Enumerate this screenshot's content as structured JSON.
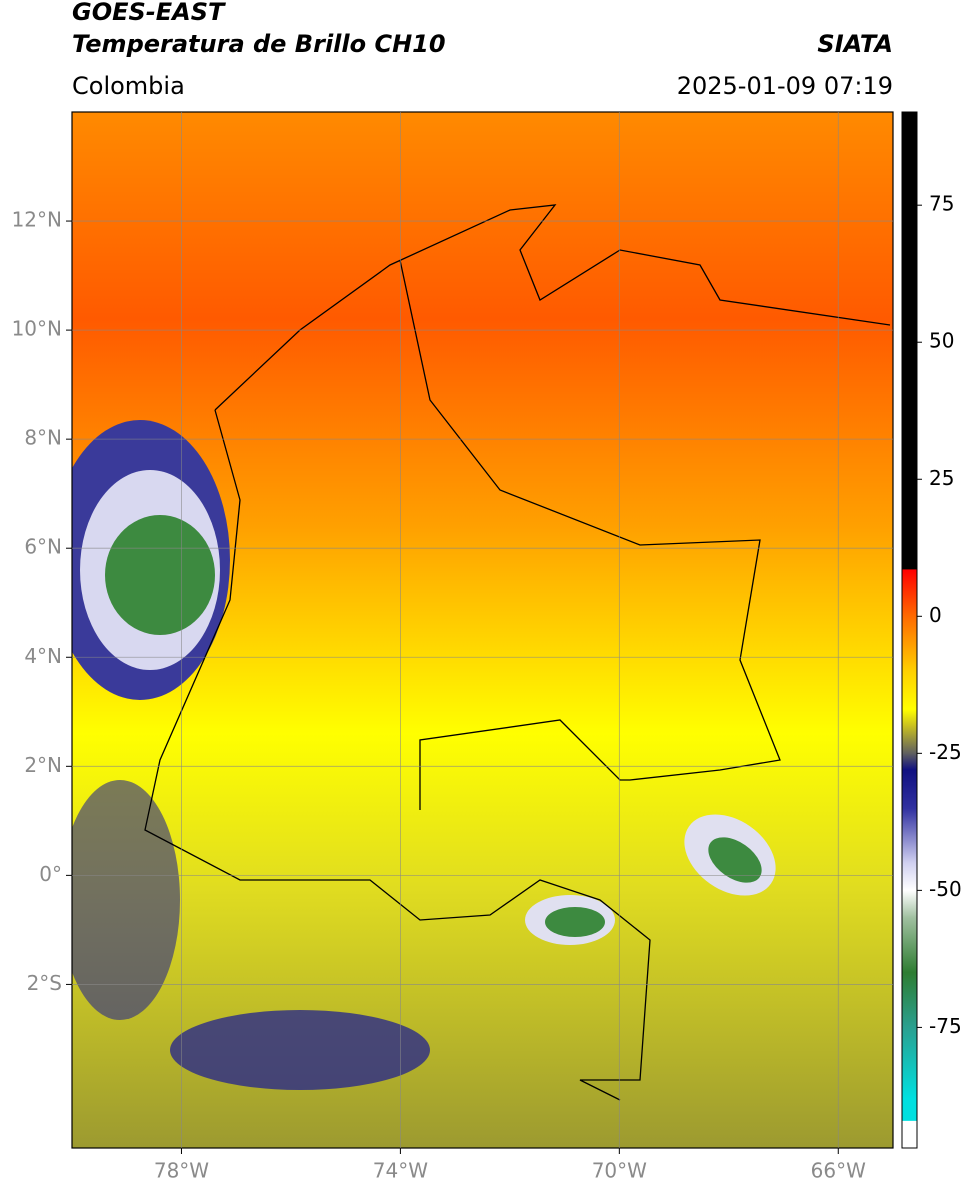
{
  "header": {
    "title": "GOES-EAST",
    "subtitle": "Temperatura de Brillo CH10",
    "source": "SIATA",
    "region": "Colombia",
    "datetime": "2025-01-09 07:19"
  },
  "map": {
    "xlim": [
      -80,
      -65
    ],
    "ylim": [
      -5,
      14
    ],
    "xticks": [
      {
        "value": -78,
        "label": "78°W"
      },
      {
        "value": -74,
        "label": "74°W"
      },
      {
        "value": -70,
        "label": "70°W"
      },
      {
        "value": -66,
        "label": "66°W"
      }
    ],
    "yticks": [
      {
        "value": 12,
        "label": "12°N"
      },
      {
        "value": 10,
        "label": "10°N"
      },
      {
        "value": 8,
        "label": "8°N"
      },
      {
        "value": 6,
        "label": "6°N"
      },
      {
        "value": 4,
        "label": "4°N"
      },
      {
        "value": 2,
        "label": "2°N"
      },
      {
        "value": 0,
        "label": "0°"
      },
      {
        "value": -2,
        "label": "2°S"
      }
    ],
    "grid": true
  },
  "colorbar": {
    "lim": [
      -97,
      92
    ],
    "ticks": [
      75,
      50,
      25,
      0,
      -25,
      -50,
      -75
    ],
    "colormap": [
      {
        "value": 92,
        "color": "#000000"
      },
      {
        "value": 8.6,
        "color": "#000000"
      },
      {
        "value": 8.5,
        "color": "#ff0000"
      },
      {
        "value": 0,
        "color": "#ff6a00"
      },
      {
        "value": -10,
        "color": "#ffd000"
      },
      {
        "value": -17,
        "color": "#ffff00"
      },
      {
        "value": -20,
        "color": "#c8c020"
      },
      {
        "value": -25,
        "color": "#606060"
      },
      {
        "value": -28,
        "color": "#101080"
      },
      {
        "value": -35,
        "color": "#3030a0"
      },
      {
        "value": -45,
        "color": "#d0d0f0"
      },
      {
        "value": -50,
        "color": "#ffffff"
      },
      {
        "value": -55,
        "color": "#a0c0a0"
      },
      {
        "value": -65,
        "color": "#2e7d32"
      },
      {
        "value": -75,
        "color": "#2aa090"
      },
      {
        "value": -88,
        "color": "#00e0e0"
      },
      {
        "value": -92,
        "color": "#00e0e0"
      },
      {
        "value": -92.1,
        "color": "#ffffff"
      },
      {
        "value": -97,
        "color": "#ffffff"
      }
    ]
  }
}
